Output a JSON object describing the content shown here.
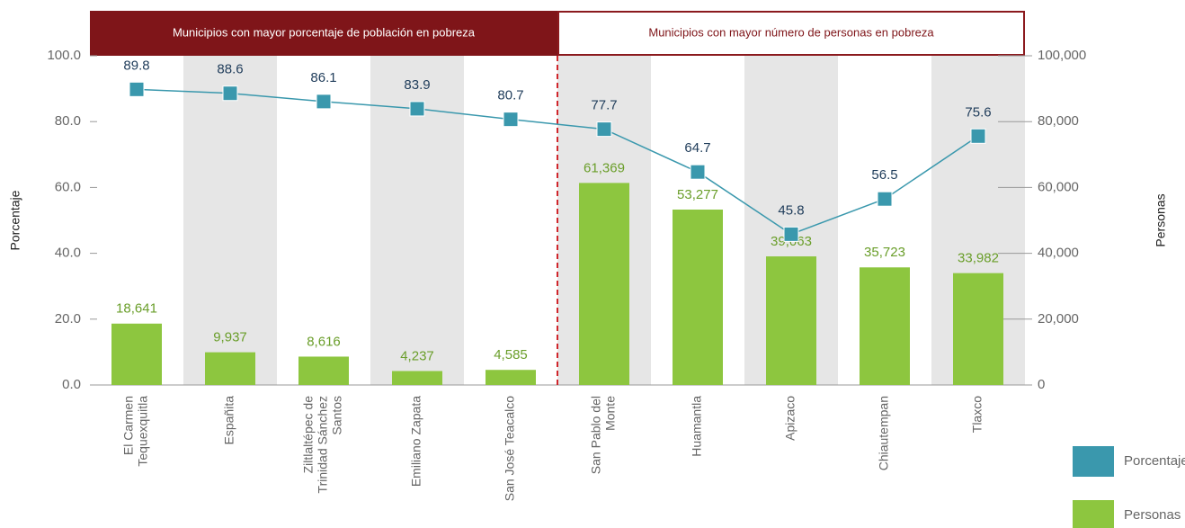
{
  "chart_data": {
    "type": "bar-line",
    "banners": [
      "Municipios con mayor porcentaje de población en pobreza",
      "Municipios con mayor número de personas en pobreza"
    ],
    "ylabel": "Porcentaje",
    "y2label": "Personas",
    "categories": [
      [
        "El Carmen",
        "Tequexquitla"
      ],
      [
        "Españita"
      ],
      [
        "Ziltlaltépec de",
        "Trinidad Sánchez",
        "Santos"
      ],
      [
        "Emiliano Zapata"
      ],
      [
        "San José Teacalco"
      ],
      [
        "San Pablo del",
        "Monte"
      ],
      [
        "Huamantla"
      ],
      [
        "Apizaco"
      ],
      [
        "Chiautempan"
      ],
      [
        "Tlaxco"
      ]
    ],
    "series": [
      {
        "name": "Porcentaje",
        "color": "#3a98ad",
        "type": "line",
        "axis": "y",
        "values": [
          89.8,
          88.6,
          86.1,
          83.9,
          80.7,
          77.7,
          64.7,
          45.8,
          56.5,
          75.6
        ]
      },
      {
        "name": "Personas",
        "color": "#8dc63f",
        "type": "bar",
        "axis": "y2",
        "values": [
          18641,
          9937,
          8616,
          4237,
          4585,
          61369,
          53277,
          39063,
          35723,
          33982
        ],
        "value_labels": [
          "18,641",
          "9,937",
          "8,616",
          "4,237",
          "4,585",
          "61,369",
          "53,277",
          "39,063",
          "35,723",
          "33,982"
        ]
      }
    ],
    "ylim": [
      0,
      100
    ],
    "yticks": [
      {
        "value": 0,
        "label": "0.0"
      },
      {
        "value": 20,
        "label": "20.0"
      },
      {
        "value": 40,
        "label": "40.0"
      },
      {
        "value": 60,
        "label": "60.0"
      },
      {
        "value": 80,
        "label": "80.0"
      },
      {
        "value": 100,
        "label": "100.0"
      }
    ],
    "y2lim": [
      0,
      100000
    ],
    "y2ticks": [
      0,
      {
        "value": 20000,
        "label": "20,000"
      },
      {
        "value": 40000,
        "label": "40,000"
      },
      {
        "value": 60000,
        "label": "60,000"
      },
      {
        "value": 80000,
        "label": "80,000"
      },
      {
        "value": 100000,
        "label": "100,000"
      }
    ]
  }
}
